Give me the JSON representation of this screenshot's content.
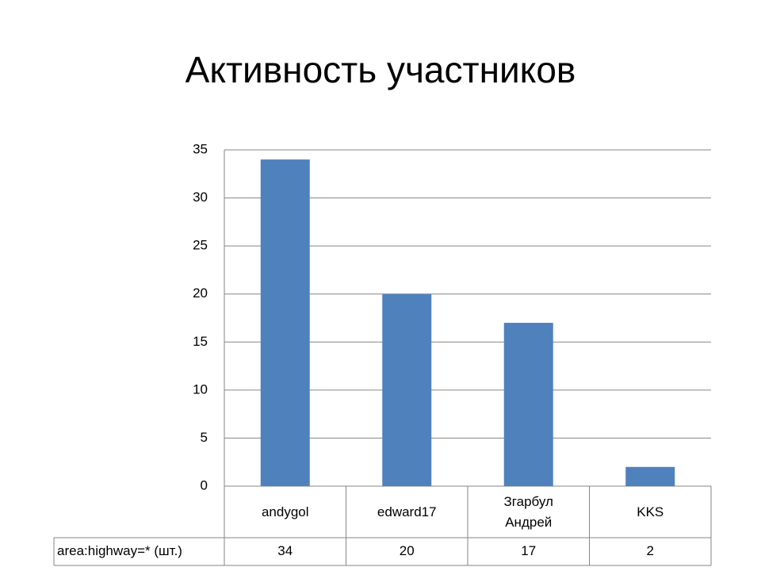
{
  "chart_data": {
    "type": "bar",
    "title": "Активность участников",
    "categories": [
      "andygol",
      "edward17",
      "Згарбул Андрей",
      "KKS"
    ],
    "series": [
      {
        "name": "area:highway=* (шт.)",
        "color": "#4f81bd",
        "values": [
          34,
          20,
          17,
          2
        ]
      }
    ],
    "ylim": [
      0,
      35
    ],
    "yticks": [
      0,
      5,
      10,
      15,
      20,
      25,
      30,
      35
    ],
    "grid": true
  }
}
